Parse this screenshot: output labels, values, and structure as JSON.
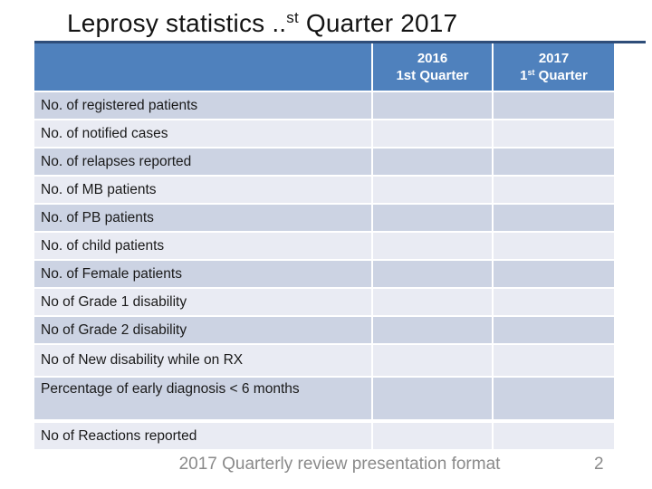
{
  "slide_title": {
    "text_before_sup": "Leprosy statistics ..",
    "sup": "st",
    "text_after_sup": " Quarter 2017"
  },
  "table": {
    "header": {
      "col_2016": {
        "year": "2016",
        "quarter": "1st Quarter"
      },
      "col_2017": {
        "year": "2017",
        "quarter_num": "1",
        "quarter_sup": "st",
        "quarter_rest": " Quarter"
      }
    },
    "rows": [
      {
        "label": "No. of registered patients",
        "value_2016": "",
        "value_2017": ""
      },
      {
        "label": "No. of notified cases",
        "value_2016": "",
        "value_2017": ""
      },
      {
        "label": "No. of relapses reported",
        "value_2016": "",
        "value_2017": ""
      },
      {
        "label": "No. of MB patients",
        "value_2016": "",
        "value_2017": ""
      },
      {
        "label": "No. of PB patients",
        "value_2016": "",
        "value_2017": ""
      },
      {
        "label": "No. of child patients",
        "value_2016": "",
        "value_2017": ""
      },
      {
        "label": "No. of Female patients",
        "value_2016": "",
        "value_2017": ""
      },
      {
        "label": "No of Grade 1 disability",
        "value_2016": "",
        "value_2017": ""
      },
      {
        "label": "No of Grade 2 disability",
        "value_2016": "",
        "value_2017": ""
      },
      {
        "label": "No of New disability while on RX",
        "value_2016": "",
        "value_2017": ""
      },
      {
        "label": "Percentage of early diagnosis < 6 months",
        "value_2016": "",
        "value_2017": ""
      },
      {
        "label": "No of Reactions reported",
        "value_2016": "",
        "value_2017": ""
      }
    ]
  },
  "footer": {
    "text": "2017 Quarterly review presentation format",
    "page_number": "2"
  },
  "colors": {
    "header_bg": "#4f81bd",
    "band_dark": "#ccd3e3",
    "band_light": "#e9ebf3",
    "title_rule": "#2e4d79",
    "footer_text": "#8a8a8a"
  }
}
